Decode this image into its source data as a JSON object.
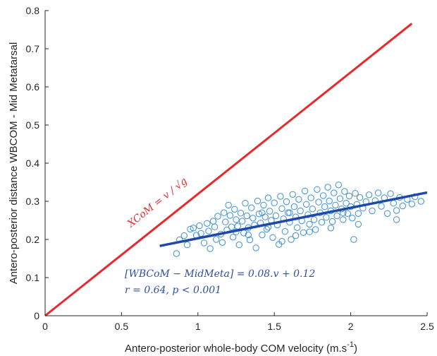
{
  "chart_data": {
    "type": "scatter",
    "xlabel": "Antero-posterior whole-body COM velocity (m.s",
    "xlabel_sup": "-1",
    "xlabel_end": ")",
    "ylabel": "Antero-posterior distance WBCOM - Mid Metatarsal",
    "xlim": [
      0,
      2.5
    ],
    "ylim": [
      0,
      0.8
    ],
    "x_ticks": [
      0,
      0.5,
      1,
      1.5,
      2,
      2.5
    ],
    "x_tick_labels": [
      "0",
      "0.5",
      "1",
      "1.5",
      "2",
      "2.5"
    ],
    "y_ticks": [
      0,
      0.1,
      0.2,
      0.3,
      0.4,
      0.5,
      0.6,
      0.7,
      0.8
    ],
    "y_tick_labels": [
      "0",
      "0.1",
      "0.2",
      "0.3",
      "0.4",
      "0.5",
      "0.6",
      "0.7",
      "0.8"
    ],
    "grid": false,
    "colors": {
      "xcom_line": "#e8282b",
      "regression_line": "#1f49a8",
      "points": "#3a8fd0",
      "annotation": "#2e4fa6"
    },
    "xcom_line": {
      "label": "XCoM = v / √g",
      "x": [
        0,
        2.4
      ],
      "y": [
        0,
        0.766
      ]
    },
    "regression": {
      "label": "[WBCoM − MidMeta] = 0.08.v + 0.12",
      "stats": "r = 0.64, p < 0.001",
      "x": [
        0.75,
        2.5
      ],
      "y": [
        0.183,
        0.323
      ]
    },
    "scatter": {
      "marker": "open-circle",
      "points": [
        [
          0.86,
          0.163
        ],
        [
          0.88,
          0.199
        ],
        [
          0.91,
          0.21
        ],
        [
          0.93,
          0.186
        ],
        [
          0.95,
          0.227
        ],
        [
          0.97,
          0.23
        ],
        [
          0.99,
          0.211
        ],
        [
          1.01,
          0.236
        ],
        [
          1.02,
          0.216
        ],
        [
          1.04,
          0.191
        ],
        [
          1.06,
          0.242
        ],
        [
          1.07,
          0.222
        ],
        [
          1.08,
          0.176
        ],
        [
          1.1,
          0.248
        ],
        [
          1.11,
          0.233
        ],
        [
          1.12,
          0.2
        ],
        [
          1.13,
          0.261
        ],
        [
          1.15,
          0.214
        ],
        [
          1.16,
          0.192
        ],
        [
          1.17,
          0.27
        ],
        [
          1.18,
          0.246
        ],
        [
          1.19,
          0.225
        ],
        [
          1.2,
          0.29
        ],
        [
          1.21,
          0.263
        ],
        [
          1.22,
          0.233
        ],
        [
          1.23,
          0.206
        ],
        [
          1.24,
          0.279
        ],
        [
          1.25,
          0.252
        ],
        [
          1.26,
          0.235
        ],
        [
          1.27,
          0.186
        ],
        [
          1.28,
          0.269
        ],
        [
          1.29,
          0.248
        ],
        [
          1.3,
          0.217
        ],
        [
          1.31,
          0.295
        ],
        [
          1.32,
          0.262
        ],
        [
          1.33,
          0.231
        ],
        [
          1.34,
          0.199
        ],
        [
          1.35,
          0.283
        ],
        [
          1.36,
          0.256
        ],
        [
          1.37,
          0.238
        ],
        [
          1.38,
          0.178
        ],
        [
          1.39,
          0.301
        ],
        [
          1.4,
          0.267
        ],
        [
          1.41,
          0.243
        ],
        [
          1.42,
          0.212
        ],
        [
          1.43,
          0.29
        ],
        [
          1.44,
          0.259
        ],
        [
          1.45,
          0.227
        ],
        [
          1.46,
          0.309
        ],
        [
          1.47,
          0.274
        ],
        [
          1.48,
          0.25
        ],
        [
          1.49,
          0.205
        ],
        [
          1.5,
          0.296
        ],
        [
          1.51,
          0.262
        ],
        [
          1.52,
          0.238
        ],
        [
          1.53,
          0.187
        ],
        [
          1.54,
          0.313
        ],
        [
          1.55,
          0.281
        ],
        [
          1.56,
          0.254
        ],
        [
          1.57,
          0.221
        ],
        [
          1.58,
          0.299
        ],
        [
          1.59,
          0.27
        ],
        [
          1.6,
          0.245
        ],
        [
          1.61,
          0.2
        ],
        [
          1.62,
          0.318
        ],
        [
          1.63,
          0.286
        ],
        [
          1.64,
          0.259
        ],
        [
          1.65,
          0.231
        ],
        [
          1.66,
          0.305
        ],
        [
          1.67,
          0.275
        ],
        [
          1.68,
          0.249
        ],
        [
          1.69,
          0.218
        ],
        [
          1.7,
          0.327
        ],
        [
          1.71,
          0.292
        ],
        [
          1.72,
          0.265
        ],
        [
          1.73,
          0.24
        ],
        [
          1.74,
          0.309
        ],
        [
          1.75,
          0.28
        ],
        [
          1.76,
          0.252
        ],
        [
          1.77,
          0.226
        ],
        [
          1.78,
          0.331
        ],
        [
          1.79,
          0.298
        ],
        [
          1.8,
          0.27
        ],
        [
          1.81,
          0.245
        ],
        [
          1.82,
          0.315
        ],
        [
          1.83,
          0.286
        ],
        [
          1.84,
          0.258
        ],
        [
          1.85,
          0.337
        ],
        [
          1.86,
          0.301
        ],
        [
          1.87,
          0.275
        ],
        [
          1.88,
          0.247
        ],
        [
          1.89,
          0.322
        ],
        [
          1.9,
          0.29
        ],
        [
          1.91,
          0.262
        ],
        [
          1.92,
          0.343
        ],
        [
          1.93,
          0.307
        ],
        [
          1.94,
          0.28
        ],
        [
          1.95,
          0.252
        ],
        [
          1.96,
          0.326
        ],
        [
          1.97,
          0.295
        ],
        [
          1.98,
          0.268
        ],
        [
          1.99,
          0.314
        ],
        [
          2.0,
          0.286
        ],
        [
          2.01,
          0.256
        ],
        [
          2.02,
          0.2
        ],
        [
          2.03,
          0.321
        ],
        [
          2.04,
          0.292
        ],
        [
          2.05,
          0.268
        ],
        [
          2.06,
          0.31
        ],
        [
          2.08,
          0.282
        ],
        [
          2.1,
          0.299
        ],
        [
          2.12,
          0.317
        ],
        [
          2.14,
          0.275
        ],
        [
          2.16,
          0.302
        ],
        [
          2.18,
          0.322
        ],
        [
          2.2,
          0.287
        ],
        [
          2.22,
          0.309
        ],
        [
          2.24,
          0.268
        ],
        [
          2.26,
          0.32
        ],
        [
          2.28,
          0.295
        ],
        [
          2.3,
          0.276
        ],
        [
          2.32,
          0.31
        ],
        [
          2.34,
          0.288
        ],
        [
          2.37,
          0.305
        ],
        [
          2.4,
          0.293
        ],
        [
          2.42,
          0.312
        ],
        [
          2.46,
          0.3
        ],
        [
          2.3,
          0.252
        ],
        [
          1.46,
          0.232
        ],
        [
          1.55,
          0.195
        ],
        [
          1.33,
          0.212
        ],
        [
          1.6,
          0.27
        ],
        [
          1.73,
          0.22
        ],
        [
          1.87,
          0.23
        ],
        [
          1.42,
          0.27
        ],
        [
          1.25,
          0.22
        ],
        [
          1.64,
          0.21
        ],
        [
          1.95,
          0.27
        ],
        [
          2.05,
          0.24
        ]
      ]
    }
  }
}
